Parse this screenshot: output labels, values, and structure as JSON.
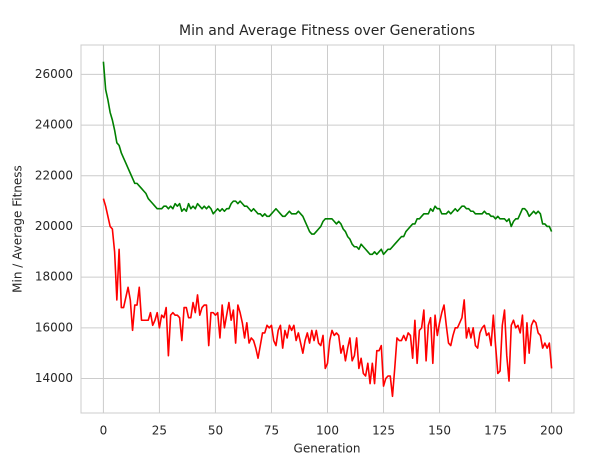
{
  "chart_data": {
    "type": "line",
    "title": "Min and Average Fitness over Generations",
    "x_label": "Generation",
    "y_label": "Min / Average Fitness",
    "x": [
      0,
      1,
      2,
      3,
      4,
      5,
      6,
      7,
      8,
      9,
      10,
      11,
      12,
      13,
      14,
      15,
      16,
      17,
      18,
      19,
      20,
      21,
      22,
      23,
      24,
      25,
      26,
      27,
      28,
      29,
      30,
      31,
      32,
      33,
      34,
      35,
      36,
      37,
      38,
      39,
      40,
      41,
      42,
      43,
      44,
      45,
      46,
      47,
      48,
      49,
      50,
      51,
      52,
      53,
      54,
      55,
      56,
      57,
      58,
      59,
      60,
      61,
      62,
      63,
      64,
      65,
      66,
      67,
      68,
      69,
      70,
      71,
      72,
      73,
      74,
      75,
      76,
      77,
      78,
      79,
      80,
      81,
      82,
      83,
      84,
      85,
      86,
      87,
      88,
      89,
      90,
      91,
      92,
      93,
      94,
      95,
      96,
      97,
      98,
      99,
      100,
      101,
      102,
      103,
      104,
      105,
      106,
      107,
      108,
      109,
      110,
      111,
      112,
      113,
      114,
      115,
      116,
      117,
      118,
      119,
      120,
      121,
      122,
      123,
      124,
      125,
      126,
      127,
      128,
      129,
      130,
      131,
      132,
      133,
      134,
      135,
      136,
      137,
      138,
      139,
      140,
      141,
      142,
      143,
      144,
      145,
      146,
      147,
      148,
      149,
      150,
      151,
      152,
      153,
      154,
      155,
      156,
      157,
      158,
      159,
      160,
      161,
      162,
      163,
      164,
      165,
      166,
      167,
      168,
      169,
      170,
      171,
      172,
      173,
      174,
      175,
      176,
      177,
      178,
      179,
      180,
      181,
      182,
      183,
      184,
      185,
      186,
      187,
      188,
      189,
      190,
      191,
      192,
      193,
      194,
      195,
      196,
      197,
      198,
      199,
      200
    ],
    "series": [
      {
        "color": "#008000",
        "values": [
          26500,
          25400,
          25000,
          24500,
          24200,
          23800,
          23300,
          23200,
          22900,
          22700,
          22500,
          22300,
          22100,
          21900,
          21700,
          21700,
          21600,
          21500,
          21400,
          21300,
          21100,
          21000,
          20900,
          20800,
          20700,
          20700,
          20700,
          20800,
          20800,
          20700,
          20800,
          20700,
          20900,
          20800,
          20900,
          20600,
          20700,
          20600,
          20900,
          20700,
          20800,
          20700,
          20900,
          20800,
          20700,
          20800,
          20700,
          20800,
          20700,
          20500,
          20600,
          20700,
          20600,
          20700,
          20600,
          20700,
          20700,
          20900,
          21000,
          21000,
          20900,
          21000,
          20900,
          20800,
          20800,
          20700,
          20600,
          20700,
          20600,
          20500,
          20500,
          20400,
          20500,
          20400,
          20400,
          20500,
          20600,
          20700,
          20600,
          20500,
          20400,
          20400,
          20500,
          20600,
          20500,
          20500,
          20500,
          20600,
          20500,
          20400,
          20200,
          20000,
          19800,
          19700,
          19700,
          19800,
          19900,
          20000,
          20200,
          20300,
          20300,
          20300,
          20300,
          20200,
          20100,
          20200,
          20100,
          19900,
          19800,
          19600,
          19500,
          19300,
          19200,
          19200,
          19100,
          19300,
          19200,
          19100,
          19000,
          18900,
          18900,
          19000,
          18900,
          19000,
          19100,
          18900,
          19000,
          19100,
          19100,
          19200,
          19300,
          19400,
          19500,
          19600,
          19600,
          19800,
          19900,
          20000,
          20100,
          20100,
          20300,
          20300,
          20400,
          20500,
          20500,
          20500,
          20700,
          20600,
          20800,
          20700,
          20700,
          20500,
          20500,
          20500,
          20600,
          20500,
          20600,
          20700,
          20600,
          20700,
          20800,
          20800,
          20700,
          20700,
          20600,
          20600,
          20500,
          20500,
          20500,
          20500,
          20600,
          20500,
          20500,
          20400,
          20400,
          20300,
          20400,
          20300,
          20300,
          20300,
          20200,
          20300,
          20000,
          20200,
          20300,
          20300,
          20500,
          20700,
          20700,
          20600,
          20400,
          20500,
          20600,
          20500,
          20600,
          20500,
          20100,
          20100,
          20000,
          20000,
          19800
        ]
      },
      {
        "color": "#ff0000",
        "values": [
          21100,
          20800,
          20400,
          20000,
          19900,
          19000,
          17100,
          19100,
          16800,
          16800,
          17200,
          17600,
          17100,
          15900,
          16900,
          16900,
          17600,
          16300,
          16300,
          16300,
          16300,
          16600,
          16100,
          16300,
          16600,
          16000,
          16500,
          16400,
          16800,
          14900,
          16500,
          16600,
          16500,
          16500,
          16400,
          15500,
          16800,
          16800,
          16400,
          16400,
          17000,
          16600,
          17300,
          16500,
          16800,
          16900,
          16900,
          15300,
          16600,
          16600,
          16500,
          16600,
          15600,
          16900,
          16000,
          16500,
          17000,
          16300,
          16700,
          15400,
          16900,
          16600,
          16200,
          15600,
          16200,
          15400,
          15600,
          15500,
          15200,
          14800,
          15300,
          15800,
          15800,
          16100,
          16000,
          16100,
          15500,
          15300,
          15900,
          16100,
          15200,
          15900,
          15600,
          16100,
          15900,
          16100,
          15500,
          15800,
          15400,
          15000,
          15500,
          15800,
          15400,
          15900,
          15500,
          15900,
          15400,
          15300,
          15700,
          14400,
          14600,
          15500,
          15900,
          15700,
          15800,
          15700,
          15000,
          15300,
          14700,
          15200,
          15600,
          14700,
          14900,
          15600,
          14400,
          14800,
          14200,
          14100,
          14600,
          13800,
          14600,
          13800,
          15100,
          15100,
          15300,
          13700,
          14000,
          14100,
          14100,
          13300,
          14400,
          15600,
          15500,
          15500,
          15700,
          15500,
          15800,
          15700,
          14800,
          16300,
          14600,
          15900,
          16000,
          16700,
          14700,
          16100,
          16400,
          14600,
          16500,
          15700,
          16200,
          16600,
          16900,
          16100,
          15400,
          15300,
          15700,
          16000,
          16000,
          16200,
          16400,
          17100,
          15600,
          16000,
          15600,
          16000,
          15300,
          15200,
          15800,
          16000,
          16100,
          15700,
          15800,
          15300,
          16500,
          15300,
          14200,
          14300,
          16100,
          16700,
          14900,
          13900,
          16100,
          16300,
          16000,
          16100,
          15800,
          16500,
          14600,
          16200,
          15000,
          16100,
          16300,
          16200,
          15800,
          15700,
          15200,
          15400,
          15200,
          15400,
          14400
        ]
      }
    ],
    "xlim": [
      -10,
      210
    ],
    "xticks": [
      0,
      25,
      50,
      75,
      100,
      125,
      150,
      175,
      200
    ],
    "ylim": [
      12640,
      27160
    ],
    "yticks": [
      14000,
      16000,
      18000,
      20000,
      22000,
      24000,
      26000
    ],
    "grid": true
  }
}
